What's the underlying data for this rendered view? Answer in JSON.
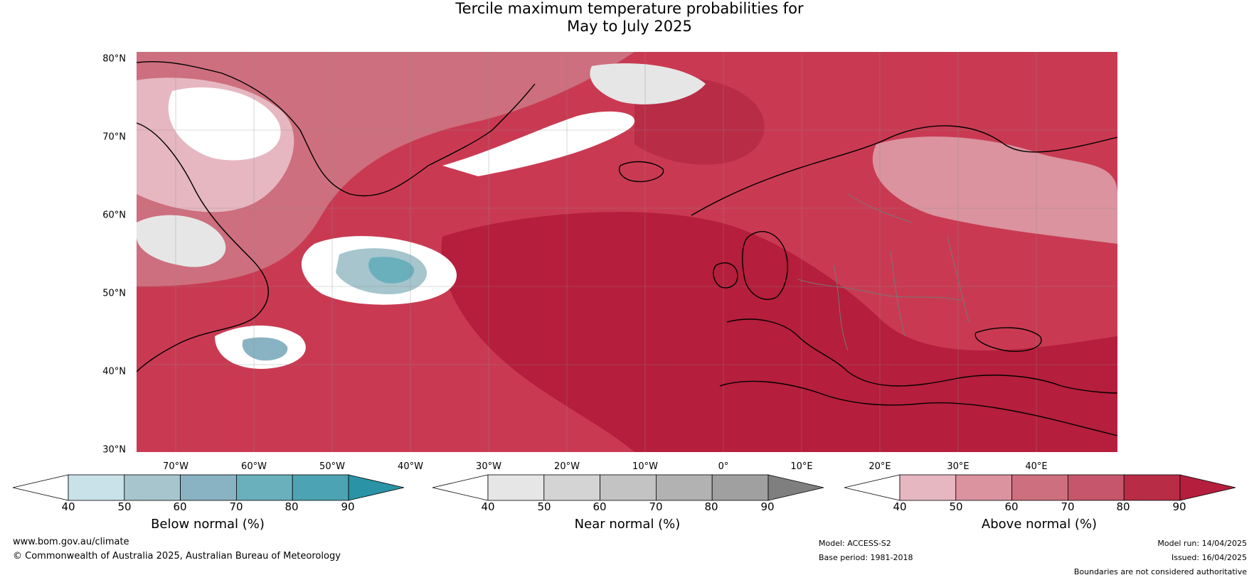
{
  "title": {
    "line1": "Tercile maximum temperature probabilities for",
    "line2": "May to July 2025"
  },
  "latitude_labels": [
    "80°N",
    "70°N",
    "60°N",
    "50°N",
    "40°N",
    "30°N"
  ],
  "longitude_labels": [
    "70°W",
    "60°W",
    "50°W",
    "40°W",
    "30°W",
    "20°W",
    "10°W",
    "0°",
    "10°E",
    "20°E",
    "30°E",
    "40°E"
  ],
  "colorbars": [
    {
      "label": "Below normal (%)",
      "ticks": [
        "40",
        "50",
        "60",
        "70",
        "80",
        "90"
      ],
      "colors": [
        "#ffffff",
        "#c9e1e8",
        "#a6c5cd",
        "#89b3c2",
        "#6aafbc",
        "#4ca3b3",
        "#2a93a6"
      ]
    },
    {
      "label": "Near normal (%)",
      "ticks": [
        "40",
        "50",
        "60",
        "70",
        "80",
        "90"
      ],
      "colors": [
        "#ffffff",
        "#e6e6e6",
        "#d4d4d4",
        "#c3c3c3",
        "#b2b2b2",
        "#a0a0a0",
        "#7f7f7f"
      ]
    },
    {
      "label": "Above normal (%)",
      "ticks": [
        "40",
        "50",
        "60",
        "70",
        "80",
        "90"
      ],
      "colors": [
        "#ffffff",
        "#e6b7c1",
        "#da939f",
        "#cd6f7e",
        "#c5566b",
        "#b92c46",
        "#b51e3c"
      ]
    }
  ],
  "footer": {
    "website": "www.bom.gov.au/climate",
    "copyright": "© Commonwealth of Australia 2025, Australian Bureau of Meteorology",
    "model": "Model: ACCESS-S2",
    "base_period": "Base period: 1981-2018",
    "model_run": "Model run: 14/04/2025",
    "issued": "Issued: 16/04/2025",
    "disclaimer": "Boundaries are not considered authoritative"
  }
}
